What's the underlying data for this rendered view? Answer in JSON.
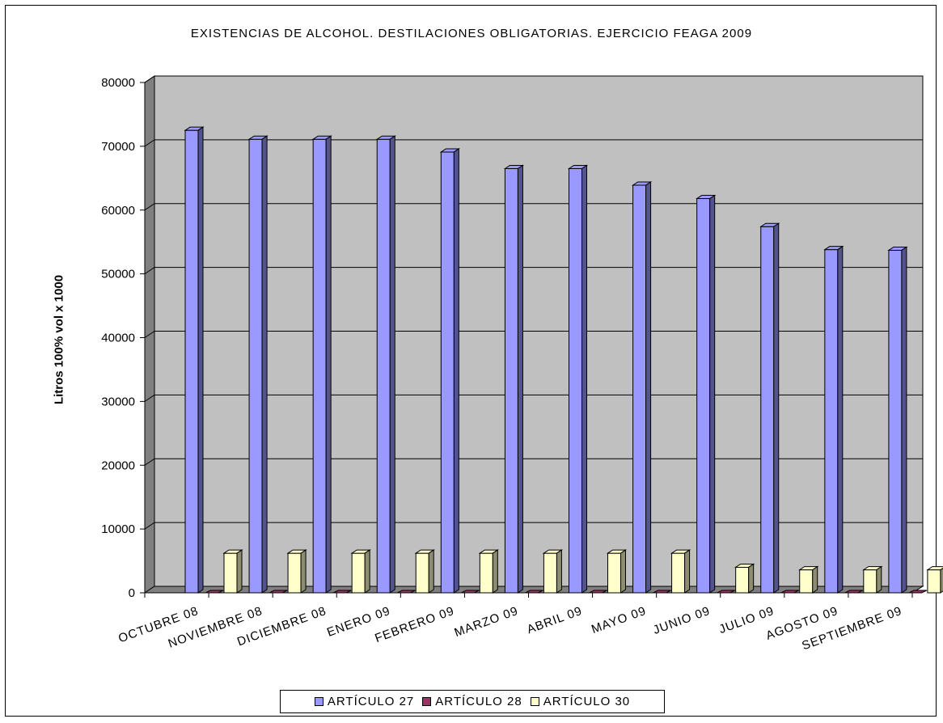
{
  "chart_data": {
    "type": "bar",
    "title": "EXISTENCIAS DE ALCOHOL. DESTILACIONES OBLIGATORIAS. EJERCICIO FEAGA 2009",
    "xlabel": "",
    "ylabel": "Litros 100% vol x 1000",
    "ylim": [
      0,
      80000
    ],
    "yticks": [
      0,
      10000,
      20000,
      30000,
      40000,
      50000,
      60000,
      70000,
      80000
    ],
    "grid": true,
    "legend_position": "bottom",
    "categories": [
      "OCTUBRE 08",
      "NOVIEMBRE 08",
      "DICIEMBRE 08",
      "ENERO 09",
      "FEBRERO 09",
      "MARZO 09",
      "ABRIL 09",
      "MAYO 09",
      "JUNIO 09",
      "JULIO 09",
      "AGOSTO 09",
      "SEPTIEMBRE 09"
    ],
    "series": [
      {
        "name": "ARTÍCULO 27",
        "color": "#9999ff",
        "values": [
          72500,
          71100,
          71100,
          71100,
          69100,
          66500,
          66500,
          63900,
          61800,
          57400,
          53800,
          53700
        ]
      },
      {
        "name": "ARTÍCULO 28",
        "color": "#993366",
        "values": [
          0,
          0,
          0,
          0,
          0,
          0,
          0,
          0,
          0,
          0,
          0,
          0
        ]
      },
      {
        "name": "ARTÍCULO 30",
        "color": "#ffffcc",
        "values": [
          6200,
          6200,
          6200,
          6200,
          6200,
          6200,
          6200,
          6200,
          4000,
          3600,
          3600,
          3600
        ]
      }
    ],
    "colors": {
      "plot_back": "#c0c0c0",
      "wall_side": "#808080",
      "floor": "#808080"
    }
  }
}
